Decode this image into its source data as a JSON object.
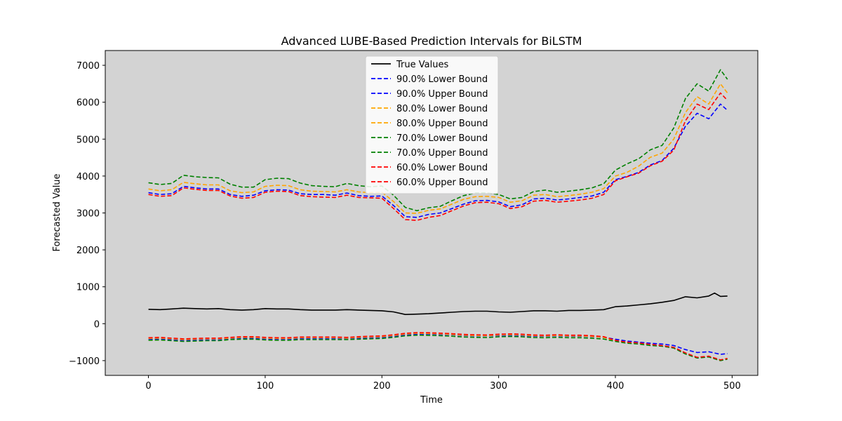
{
  "chart_data": {
    "type": "line",
    "title": "Advanced LUBE-Based Prediction Intervals for BiLSTM",
    "xlabel": "Time",
    "ylabel": "Forecasted Value",
    "xlim": [
      -37,
      522
    ],
    "ylim": [
      -1400,
      7400
    ],
    "xticks": [
      0,
      100,
      200,
      300,
      400,
      500
    ],
    "yticks": [
      -1000,
      0,
      1000,
      2000,
      3000,
      4000,
      5000,
      6000,
      7000
    ],
    "xtick_labels": [
      "0",
      "100",
      "200",
      "300",
      "400",
      "500"
    ],
    "ytick_labels": [
      "−1000",
      "0",
      "1000",
      "2000",
      "3000",
      "4000",
      "5000",
      "6000",
      "7000"
    ],
    "background": "#d3d3d3",
    "grid": false,
    "legend_position": "upper-center",
    "series": [
      {
        "name": "True Values",
        "color": "#000000",
        "style": "solid",
        "x": [
          0,
          10,
          20,
          30,
          40,
          50,
          60,
          70,
          80,
          90,
          100,
          110,
          120,
          130,
          140,
          150,
          160,
          170,
          180,
          190,
          200,
          210,
          220,
          230,
          240,
          250,
          260,
          270,
          280,
          290,
          300,
          310,
          320,
          330,
          340,
          350,
          360,
          370,
          380,
          390,
          400,
          410,
          420,
          430,
          440,
          450,
          460,
          470,
          480,
          485,
          490,
          496
        ],
        "y": [
          390,
          380,
          400,
          420,
          410,
          400,
          410,
          380,
          370,
          380,
          410,
          400,
          400,
          380,
          370,
          370,
          370,
          380,
          370,
          360,
          350,
          320,
          250,
          260,
          270,
          290,
          310,
          330,
          340,
          340,
          320,
          310,
          330,
          350,
          350,
          340,
          360,
          360,
          370,
          380,
          460,
          480,
          510,
          540,
          580,
          630,
          730,
          700,
          750,
          830,
          740,
          750
        ]
      },
      {
        "name": "90.0% Lower Bound",
        "color": "#0000ff",
        "style": "dashed",
        "x": [
          0,
          10,
          20,
          30,
          40,
          50,
          60,
          70,
          80,
          90,
          100,
          110,
          120,
          130,
          140,
          150,
          160,
          170,
          180,
          190,
          200,
          210,
          220,
          230,
          240,
          250,
          260,
          270,
          280,
          290,
          300,
          310,
          320,
          330,
          340,
          350,
          360,
          370,
          380,
          390,
          400,
          410,
          420,
          430,
          440,
          450,
          460,
          470,
          480,
          490,
          496
        ],
        "y": [
          -420,
          -410,
          -430,
          -450,
          -440,
          -430,
          -430,
          -400,
          -390,
          -390,
          -410,
          -420,
          -420,
          -400,
          -400,
          -400,
          -400,
          -400,
          -390,
          -380,
          -370,
          -340,
          -300,
          -280,
          -280,
          -290,
          -300,
          -320,
          -330,
          -330,
          -320,
          -310,
          -320,
          -340,
          -340,
          -330,
          -340,
          -340,
          -350,
          -370,
          -420,
          -470,
          -500,
          -530,
          -550,
          -590,
          -700,
          -780,
          -760,
          -830,
          -810
        ]
      },
      {
        "name": "90.0% Upper Bound",
        "color": "#0000ff",
        "style": "dashed",
        "x": [
          0,
          10,
          20,
          30,
          40,
          50,
          60,
          70,
          80,
          90,
          100,
          110,
          120,
          130,
          140,
          150,
          160,
          170,
          180,
          190,
          200,
          210,
          220,
          230,
          240,
          250,
          260,
          270,
          280,
          290,
          300,
          310,
          320,
          330,
          340,
          350,
          360,
          370,
          380,
          390,
          400,
          410,
          420,
          430,
          440,
          450,
          460,
          470,
          480,
          490,
          496
        ],
        "y": [
          3550,
          3500,
          3520,
          3720,
          3680,
          3650,
          3650,
          3500,
          3450,
          3480,
          3600,
          3630,
          3620,
          3520,
          3500,
          3500,
          3480,
          3540,
          3470,
          3450,
          3460,
          3200,
          2900,
          2880,
          2960,
          3000,
          3120,
          3240,
          3330,
          3340,
          3300,
          3170,
          3220,
          3380,
          3400,
          3350,
          3380,
          3420,
          3460,
          3560,
          3900,
          3990,
          4100,
          4300,
          4420,
          4750,
          5350,
          5700,
          5550,
          5950,
          5780
        ]
      },
      {
        "name": "80.0% Lower Bound",
        "color": "#ffa500",
        "style": "dashed",
        "x": [
          0,
          10,
          20,
          30,
          40,
          50,
          60,
          70,
          80,
          90,
          100,
          110,
          120,
          130,
          140,
          150,
          160,
          170,
          180,
          190,
          200,
          210,
          220,
          230,
          240,
          250,
          260,
          270,
          280,
          290,
          300,
          310,
          320,
          330,
          340,
          350,
          360,
          370,
          380,
          390,
          400,
          410,
          420,
          430,
          440,
          450,
          460,
          470,
          480,
          490,
          496
        ],
        "y": [
          -400,
          -390,
          -410,
          -430,
          -420,
          -410,
          -410,
          -390,
          -370,
          -370,
          -390,
          -400,
          -400,
          -380,
          -380,
          -380,
          -380,
          -390,
          -370,
          -360,
          -350,
          -320,
          -280,
          -260,
          -265,
          -275,
          -290,
          -310,
          -320,
          -325,
          -305,
          -295,
          -305,
          -325,
          -330,
          -320,
          -330,
          -330,
          -345,
          -370,
          -460,
          -510,
          -530,
          -570,
          -600,
          -650,
          -800,
          -920,
          -890,
          -990,
          -950
        ]
      },
      {
        "name": "80.0% Upper Bound",
        "color": "#ffa500",
        "style": "dashed",
        "x": [
          0,
          10,
          20,
          30,
          40,
          50,
          60,
          70,
          80,
          90,
          100,
          110,
          120,
          130,
          140,
          150,
          160,
          170,
          180,
          190,
          200,
          210,
          220,
          230,
          240,
          250,
          260,
          270,
          280,
          290,
          300,
          310,
          320,
          330,
          340,
          350,
          360,
          370,
          380,
          390,
          400,
          410,
          420,
          430,
          440,
          450,
          460,
          470,
          480,
          490,
          496
        ],
        "y": [
          3650,
          3600,
          3630,
          3830,
          3790,
          3760,
          3760,
          3600,
          3550,
          3570,
          3720,
          3750,
          3740,
          3630,
          3590,
          3580,
          3570,
          3630,
          3570,
          3550,
          3560,
          3310,
          3000,
          2990,
          3070,
          3110,
          3240,
          3370,
          3440,
          3450,
          3420,
          3290,
          3330,
          3480,
          3500,
          3440,
          3470,
          3510,
          3560,
          3660,
          4000,
          4100,
          4270,
          4510,
          4620,
          5000,
          5720,
          6150,
          5950,
          6500,
          6250
        ]
      },
      {
        "name": "70.0% Lower Bound",
        "color": "#008000",
        "style": "dashed",
        "x": [
          0,
          10,
          20,
          30,
          40,
          50,
          60,
          70,
          80,
          90,
          100,
          110,
          120,
          130,
          140,
          150,
          160,
          170,
          180,
          190,
          200,
          210,
          220,
          230,
          240,
          250,
          260,
          270,
          280,
          290,
          300,
          310,
          320,
          330,
          340,
          350,
          360,
          370,
          380,
          390,
          400,
          410,
          420,
          430,
          440,
          450,
          460,
          470,
          480,
          490,
          496
        ],
        "y": [
          -450,
          -440,
          -460,
          -480,
          -470,
          -460,
          -460,
          -430,
          -420,
          -420,
          -440,
          -450,
          -450,
          -430,
          -430,
          -430,
          -430,
          -430,
          -420,
          -410,
          -400,
          -370,
          -330,
          -310,
          -315,
          -325,
          -340,
          -360,
          -370,
          -375,
          -355,
          -345,
          -355,
          -375,
          -380,
          -370,
          -380,
          -380,
          -395,
          -415,
          -480,
          -530,
          -550,
          -590,
          -610,
          -660,
          -820,
          -930,
          -900,
          -1000,
          -960
        ]
      },
      {
        "name": "70.0% Upper Bound",
        "color": "#008000",
        "style": "dashed",
        "x": [
          0,
          10,
          20,
          30,
          40,
          50,
          60,
          70,
          80,
          90,
          100,
          110,
          120,
          130,
          140,
          150,
          160,
          170,
          180,
          190,
          200,
          210,
          220,
          230,
          240,
          250,
          260,
          270,
          280,
          290,
          300,
          310,
          320,
          330,
          340,
          350,
          360,
          370,
          380,
          390,
          400,
          410,
          420,
          430,
          440,
          450,
          460,
          470,
          480,
          490,
          496
        ],
        "y": [
          3820,
          3770,
          3800,
          4020,
          3980,
          3960,
          3950,
          3780,
          3700,
          3700,
          3900,
          3940,
          3930,
          3810,
          3740,
          3720,
          3710,
          3800,
          3740,
          3710,
          3730,
          3480,
          3150,
          3060,
          3140,
          3180,
          3330,
          3470,
          3540,
          3540,
          3500,
          3380,
          3420,
          3580,
          3620,
          3560,
          3590,
          3630,
          3680,
          3790,
          4160,
          4330,
          4470,
          4710,
          4830,
          5300,
          6100,
          6500,
          6300,
          6880,
          6620
        ]
      },
      {
        "name": "60.0% Lower Bound",
        "color": "#ff0000",
        "style": "dashed",
        "x": [
          0,
          10,
          20,
          30,
          40,
          50,
          60,
          70,
          80,
          90,
          100,
          110,
          120,
          130,
          140,
          150,
          160,
          170,
          180,
          190,
          200,
          210,
          220,
          230,
          240,
          250,
          260,
          270,
          280,
          290,
          300,
          310,
          320,
          330,
          340,
          350,
          360,
          370,
          380,
          390,
          400,
          410,
          420,
          430,
          440,
          450,
          460,
          470,
          480,
          490,
          496
        ],
        "y": [
          -380,
          -370,
          -390,
          -410,
          -400,
          -390,
          -390,
          -370,
          -350,
          -350,
          -370,
          -380,
          -380,
          -360,
          -360,
          -360,
          -360,
          -370,
          -350,
          -340,
          -330,
          -300,
          -260,
          -240,
          -245,
          -255,
          -270,
          -290,
          -300,
          -305,
          -285,
          -275,
          -285,
          -305,
          -310,
          -300,
          -310,
          -310,
          -325,
          -350,
          -450,
          -500,
          -520,
          -560,
          -590,
          -640,
          -790,
          -910,
          -880,
          -980,
          -940
        ]
      },
      {
        "name": "60.0% Upper Bound",
        "color": "#ff0000",
        "style": "dashed",
        "x": [
          0,
          10,
          20,
          30,
          40,
          50,
          60,
          70,
          80,
          90,
          100,
          110,
          120,
          130,
          140,
          150,
          160,
          170,
          180,
          190,
          200,
          210,
          220,
          230,
          240,
          250,
          260,
          270,
          280,
          290,
          300,
          310,
          320,
          330,
          340,
          350,
          360,
          370,
          380,
          390,
          400,
          410,
          420,
          430,
          440,
          450,
          460,
          470,
          480,
          490,
          496
        ],
        "y": [
          3500,
          3450,
          3470,
          3680,
          3640,
          3610,
          3610,
          3460,
          3400,
          3420,
          3560,
          3590,
          3580,
          3470,
          3440,
          3430,
          3420,
          3480,
          3420,
          3410,
          3400,
          3120,
          2820,
          2800,
          2880,
          2930,
          3060,
          3190,
          3280,
          3290,
          3250,
          3120,
          3170,
          3320,
          3340,
          3290,
          3320,
          3350,
          3400,
          3500,
          3870,
          3980,
          4080,
          4280,
          4400,
          4700,
          5500,
          5950,
          5800,
          6250,
          6050
        ]
      }
    ]
  }
}
